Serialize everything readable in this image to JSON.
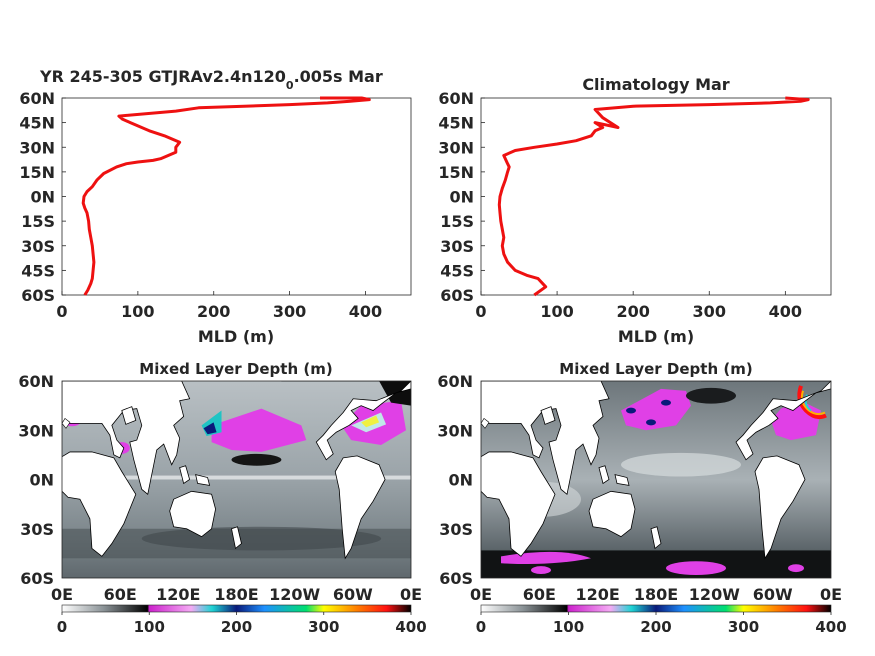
{
  "chart_data": [
    {
      "type": "line",
      "title_main": "YR 245-305 GTJRAv2.4n120",
      "title_sub": "0",
      "title_end": ".005s Mar",
      "xlabel": "MLD (m)",
      "xlim": [
        0,
        460
      ],
      "ylim": [
        -60,
        60
      ],
      "xticks": [
        "0",
        "100",
        "200",
        "300",
        "400"
      ],
      "yticks": [
        "60N",
        "45N",
        "30N",
        "15N",
        "0N",
        "15S",
        "30S",
        "45S",
        "60S"
      ],
      "line_color": "#ee1111",
      "series": [
        {
          "x": [
            30,
            34,
            38,
            40,
            41,
            42,
            41,
            40,
            38,
            36,
            35,
            33,
            30,
            28,
            29,
            33,
            40,
            46,
            55,
            72,
            85,
            100,
            120,
            130,
            140,
            150,
            150,
            155,
            145,
            135,
            115,
            100,
            90,
            80,
            75,
            150,
            180,
            240,
            300,
            350,
            380,
            405,
            395,
            340
          ],
          "y": [
            -60,
            -57,
            -53,
            -50,
            -45,
            -40,
            -35,
            -30,
            -25,
            -20,
            -15,
            -10,
            -7,
            -4,
            0,
            3,
            6,
            10,
            14,
            18,
            20,
            21,
            22,
            23,
            25,
            27,
            30,
            33,
            35,
            37,
            40,
            43,
            45,
            47,
            49,
            52,
            54,
            55,
            56,
            57,
            58,
            59,
            60,
            60
          ]
        }
      ]
    },
    {
      "type": "line",
      "title_main": "Climatology Mar",
      "title_sub": "",
      "title_end": "",
      "xlabel": "MLD (m)",
      "xlim": [
        0,
        460
      ],
      "ylim": [
        -60,
        60
      ],
      "xticks": [
        "0",
        "100",
        "200",
        "300",
        "400"
      ],
      "yticks": [
        "60N",
        "45N",
        "30N",
        "15N",
        "0N",
        "15S",
        "30S",
        "45S",
        "60S"
      ],
      "line_color": "#ee1111",
      "series": [
        {
          "x": [
            70,
            85,
            75,
            60,
            45,
            35,
            30,
            28,
            30,
            28,
            26,
            25,
            24,
            25,
            28,
            32,
            35,
            37,
            35,
            32,
            30,
            45,
            70,
            100,
            125,
            145,
            150,
            160,
            150,
            180,
            160,
            150,
            200,
            300,
            380,
            420,
            430,
            400
          ],
          "y": [
            -60,
            -55,
            -50,
            -48,
            -45,
            -40,
            -35,
            -30,
            -25,
            -20,
            -15,
            -10,
            -5,
            0,
            5,
            10,
            15,
            18,
            20,
            23,
            25,
            28,
            30,
            32,
            34,
            37,
            40,
            42,
            45,
            42,
            48,
            53,
            55,
            56,
            57,
            58,
            59,
            60
          ]
        }
      ]
    },
    {
      "type": "heatmap",
      "title": "Mixed Layer Depth (m)",
      "xticks": [
        "0E",
        "60E",
        "120E",
        "180E",
        "120W",
        "60W",
        "0E"
      ],
      "yticks": [
        "60N",
        "30N",
        "0N",
        "30S",
        "60S"
      ],
      "colorbar_ticks": [
        "0",
        "100",
        "200",
        "300",
        "400"
      ],
      "clim": [
        0,
        400
      ],
      "colormap": [
        "#ffffff",
        "#8a9296",
        "#000000",
        "#ee33ee",
        "#f4aaf4",
        "#1fd4d4",
        "#0a1a7a",
        "#1e90ff",
        "#00e070",
        "#ffff00",
        "#ff7700",
        "#ff1111",
        "#000000"
      ]
    },
    {
      "type": "heatmap",
      "title": "Mixed Layer Depth (m)",
      "xticks": [
        "0E",
        "60E",
        "120E",
        "180E",
        "120W",
        "60W",
        "0E"
      ],
      "yticks": [
        "60N",
        "30N",
        "0N",
        "30S",
        "60S"
      ],
      "colorbar_ticks": [
        "0",
        "100",
        "200",
        "300",
        "400"
      ],
      "clim": [
        0,
        400
      ],
      "colormap": [
        "#ffffff",
        "#8a9296",
        "#000000",
        "#ee33ee",
        "#f4aaf4",
        "#1fd4d4",
        "#0a1a7a",
        "#1e90ff",
        "#00e070",
        "#ffff00",
        "#ff7700",
        "#ff1111",
        "#000000"
      ]
    }
  ]
}
